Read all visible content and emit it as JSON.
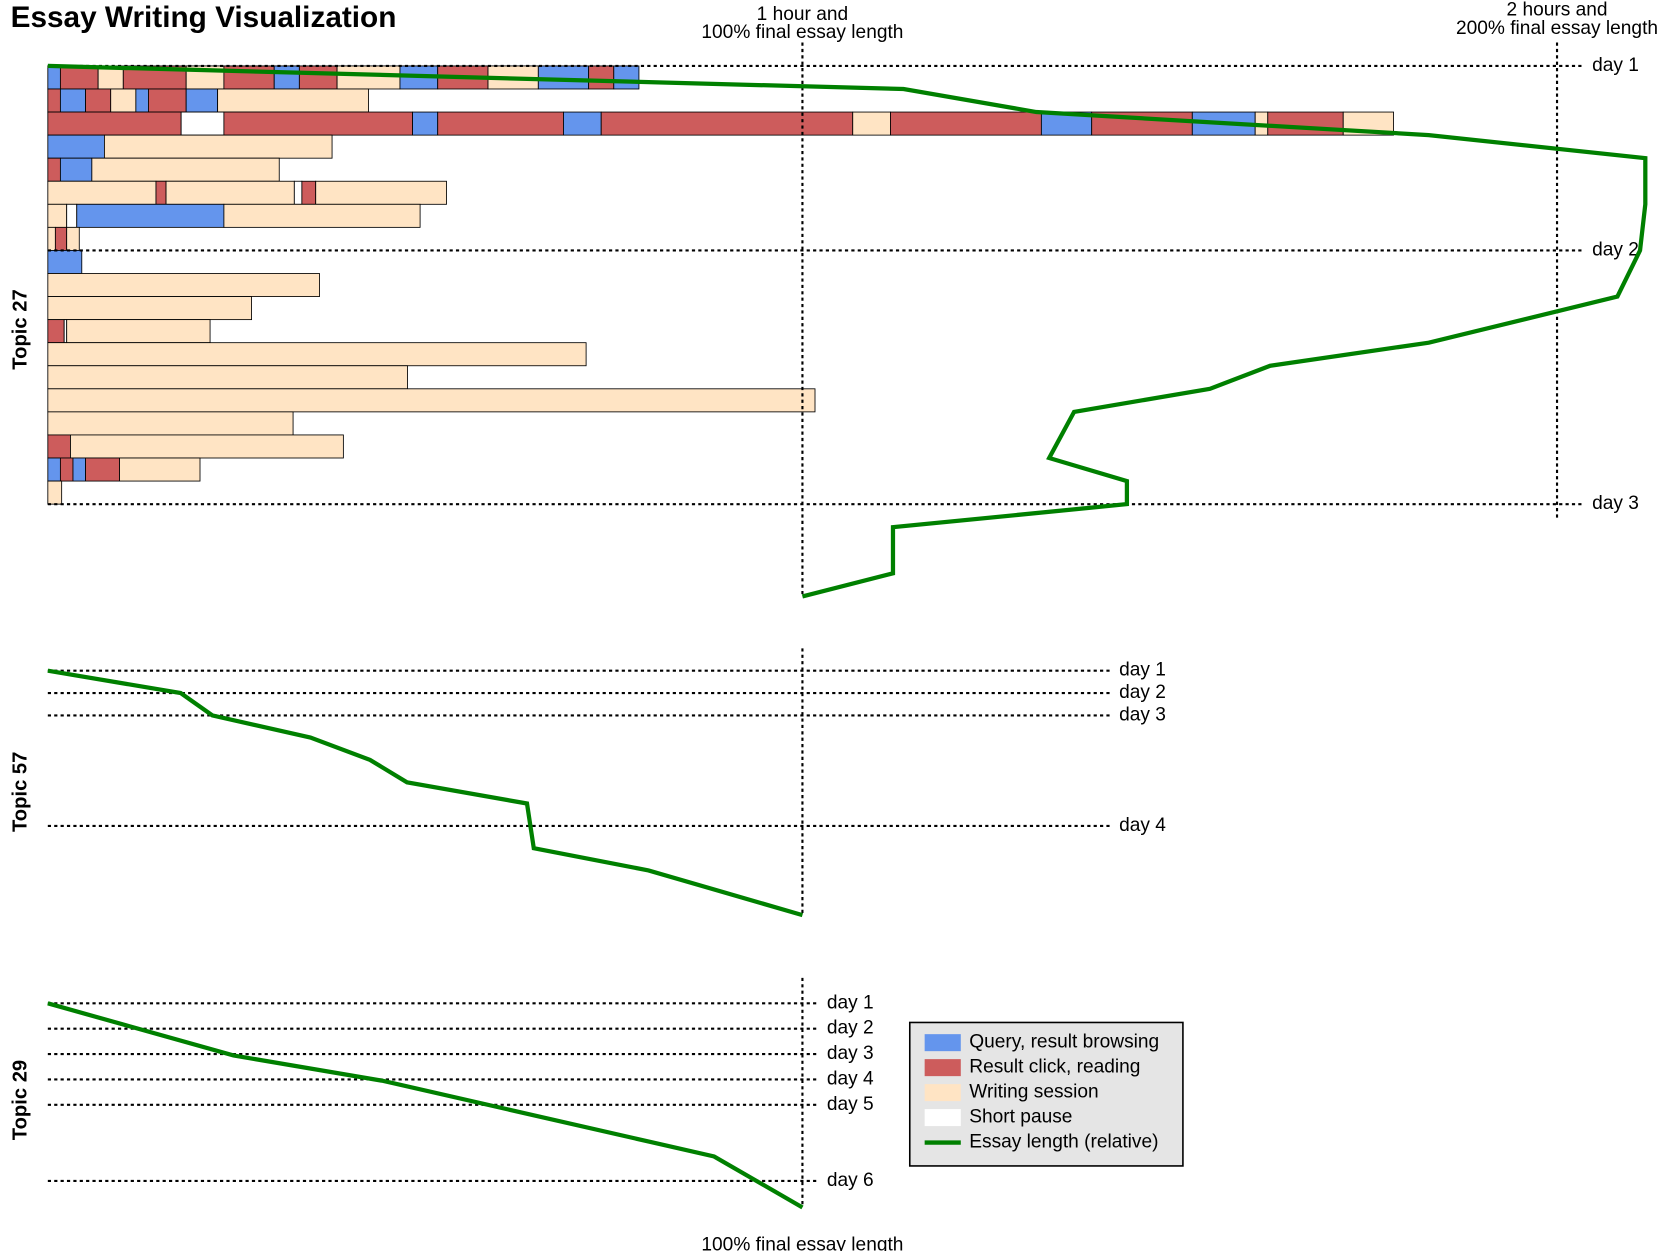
{
  "title": "Essay Writing Visualization",
  "top_labels": [
    {
      "lines": [
        "1 hour and",
        "100% final essay length"
      ],
      "value": 60
    },
    {
      "lines": [
        "2 hours and",
        "200% final essay length"
      ],
      "value": 120
    }
  ],
  "bottom_label": {
    "text": "100% final essay length",
    "value": 100
  },
  "legend": [
    {
      "key": "q",
      "label": "Query, result browsing",
      "color": "#6495ed"
    },
    {
      "key": "r",
      "label": "Result click, reading",
      "color": "#cd5c5c"
    },
    {
      "key": "w",
      "label": "Writing session",
      "color": "#ffe4c4"
    },
    {
      "key": "p",
      "label": "Short pause",
      "color": "#ffffff"
    },
    {
      "key": "line",
      "label": "Essay length (relative)",
      "color": "#008000"
    }
  ],
  "topics": [
    {
      "name": "Topic 27",
      "days": [
        {
          "label": "day 1",
          "pos": 0
        },
        {
          "label": "day 2",
          "pos": 8
        },
        {
          "label": "day 3",
          "pos": 19
        }
      ],
      "sessions": [
        [
          [
            "q",
            1
          ],
          [
            "r",
            3
          ],
          [
            "w",
            2
          ],
          [
            "r",
            5
          ],
          [
            "w",
            3
          ],
          [
            "r",
            4
          ],
          [
            "q",
            2
          ],
          [
            "r",
            3
          ],
          [
            "w",
            5
          ],
          [
            "q",
            3
          ],
          [
            "r",
            4
          ],
          [
            "w",
            4
          ],
          [
            "q",
            4
          ],
          [
            "r",
            2
          ],
          [
            "q",
            2
          ]
        ],
        [
          [
            "r",
            1
          ],
          [
            "q",
            2
          ],
          [
            "r",
            2
          ],
          [
            "w",
            2
          ],
          [
            "q",
            1
          ],
          [
            "r",
            3
          ],
          [
            "q",
            2.5
          ],
          [
            "w",
            12
          ]
        ],
        [
          [
            "r",
            10.6
          ],
          [
            "p",
            3.4
          ],
          [
            "r",
            15
          ],
          [
            "q",
            2
          ],
          [
            "r",
            10
          ],
          [
            "q",
            3
          ],
          [
            "r",
            20
          ],
          [
            "w",
            3
          ],
          [
            "r",
            12
          ],
          [
            "q",
            4
          ],
          [
            "r",
            8
          ],
          [
            "q",
            5
          ],
          [
            "w",
            1
          ],
          [
            "r",
            6
          ],
          [
            "w",
            4
          ]
        ],
        [
          [
            "q",
            4.5
          ],
          [
            "w",
            18.1
          ]
        ],
        [
          [
            "r",
            1
          ],
          [
            "q",
            2.5
          ],
          [
            "w",
            14.9
          ]
        ],
        [
          [
            "w",
            8.6
          ],
          [
            "r",
            0.8
          ],
          [
            "w",
            10.2
          ],
          [
            "p",
            0.6
          ],
          [
            "r",
            1.1
          ],
          [
            "w",
            10.4
          ]
        ],
        [
          [
            "w",
            1.5
          ],
          [
            "p",
            0.8
          ],
          [
            "q",
            11.7
          ],
          [
            "w",
            15.6
          ]
        ],
        [
          [
            "w",
            0.6
          ],
          [
            "r",
            0.9
          ],
          [
            "w",
            1
          ]
        ],
        [
          [
            "q",
            2.7
          ]
        ],
        [
          [
            "w",
            21.6
          ]
        ],
        [
          [
            "w",
            16.2
          ]
        ],
        [
          [
            "r",
            1.3
          ],
          [
            "p",
            0.2
          ],
          [
            "w",
            11.4
          ]
        ],
        [
          [
            "w",
            42.8
          ]
        ],
        [
          [
            "w",
            28.6
          ]
        ],
        [
          [
            "w",
            61
          ]
        ],
        [
          [
            "w",
            19.5
          ]
        ],
        [
          [
            "r",
            1.8
          ],
          [
            "w",
            21.7
          ]
        ],
        [
          [
            "q",
            1
          ],
          [
            "r",
            1
          ],
          [
            "q",
            1
          ],
          [
            "r",
            2.7
          ],
          [
            "w",
            6.4
          ]
        ],
        [
          [
            "w",
            1.1
          ]
        ]
      ],
      "essay_length": {
        "percent": [
          0,
          113.4,
          131,
          183,
          211.7,
          211.7,
          211,
          208,
          183,
          162,
          154,
          136,
          132.7,
          143,
          143,
          112,
          112,
          100
        ],
        "pos": [
          0,
          1,
          2,
          3,
          4,
          6,
          8,
          10,
          12,
          13,
          14,
          15,
          17,
          18,
          19,
          20,
          22,
          23
        ]
      }
    },
    {
      "name": "Topic 57",
      "days": [
        {
          "label": "day 1",
          "pos": 0
        },
        {
          "label": "day 2",
          "pos": 0.97
        },
        {
          "label": "day 3",
          "pos": 1.94
        },
        {
          "label": "day 4",
          "pos": 6.73
        }
      ],
      "sessions": [],
      "essay_length": {
        "percent": [
          0,
          17.6,
          21.8,
          34.8,
          42.7,
          47.6,
          63.5,
          64.4,
          79.6,
          100
        ],
        "pos": [
          0,
          0.97,
          1.94,
          2.9,
          3.87,
          4.84,
          5.76,
          7.7,
          8.66,
          10.6
        ]
      }
    },
    {
      "name": "Topic 29",
      "days": [
        {
          "label": "day 1",
          "pos": 0
        },
        {
          "label": "day 2",
          "pos": 1.1
        },
        {
          "label": "day 3",
          "pos": 2.2
        },
        {
          "label": "day 4",
          "pos": 3.3
        },
        {
          "label": "day 5",
          "pos": 4.4
        },
        {
          "label": "day 6",
          "pos": 7.7
        }
      ],
      "sessions": [],
      "essay_length": {
        "percent": [
          0,
          24.6,
          44.4,
          88.3,
          100
        ],
        "pos": [
          0,
          2.26,
          3.36,
          6.64,
          8.85
        ]
      }
    }
  ]
}
